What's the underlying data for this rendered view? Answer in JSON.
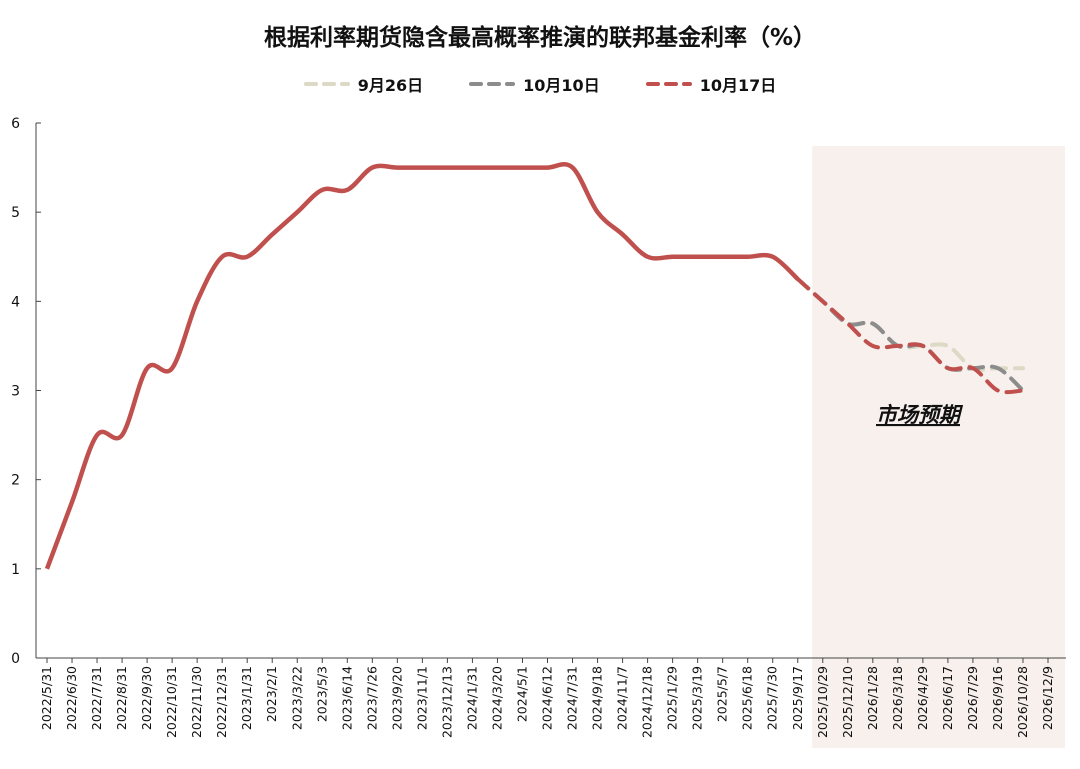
{
  "chart_data": {
    "type": "line",
    "title": "根据利率期货隐含最高概率推演的联邦基金利率（%）",
    "annotation": "市场预期",
    "ylim": [
      0,
      6
    ],
    "yticks": [
      0,
      1,
      2,
      3,
      4,
      5,
      6
    ],
    "legend_position": "top-center",
    "grid": false,
    "shaded_region_start": "2025/10/29",
    "x_tick_labels": [
      "2022/5/31",
      "2022/6/30",
      "2022/7/31",
      "2022/8/31",
      "2022/9/30",
      "2022/10/31",
      "2022/11/30",
      "2022/12/31",
      "2023/1/31",
      "2023/2/1",
      "2023/3/22",
      "2023/5/3",
      "2023/6/14",
      "2023/7/26",
      "2023/9/20",
      "2023/11/1",
      "2023/12/13",
      "2024/1/31",
      "2024/3/20",
      "2024/5/1",
      "2024/6/12",
      "2024/7/31",
      "2024/9/18",
      "2024/11/7",
      "2024/12/18",
      "2025/1/29",
      "2025/3/19",
      "2025/5/7",
      "2025/6/18",
      "2025/7/30",
      "2025/9/17",
      "2025/10/29",
      "2025/12/10",
      "2026/1/28",
      "2026/3/18",
      "2026/4/29",
      "2026/6/17",
      "2026/7/29",
      "2026/9/16",
      "2026/10/28",
      "2026/12/9"
    ],
    "history": {
      "name": "10月17日",
      "color": "#c0504d",
      "values": [
        1.0,
        1.75,
        2.5,
        2.5,
        3.25,
        3.25,
        4.0,
        4.5,
        4.5,
        4.75,
        5.0,
        5.25,
        5.25,
        5.5,
        5.5,
        5.5,
        5.5,
        5.5,
        5.5,
        5.5,
        5.5,
        5.5,
        5.0,
        4.75,
        4.5,
        4.5,
        4.5,
        4.5,
        4.5,
        4.5,
        4.25
      ]
    },
    "series": [
      {
        "name": "9月26日",
        "color": "#dcd9c4",
        "values": [
          4.25,
          4.0,
          3.75,
          3.75,
          3.5,
          3.5,
          3.5,
          3.25,
          3.25,
          3.25
        ]
      },
      {
        "name": "10月10日",
        "color": "#8c8c8c",
        "values": [
          4.25,
          4.0,
          3.75,
          3.75,
          3.5,
          3.5,
          3.25,
          3.25,
          3.25,
          3.0
        ]
      },
      {
        "name": "10月17日",
        "color": "#c0504d",
        "values": [
          4.25,
          4.0,
          3.75,
          3.5,
          3.5,
          3.5,
          3.25,
          3.25,
          3.0,
          3.0
        ]
      }
    ]
  }
}
